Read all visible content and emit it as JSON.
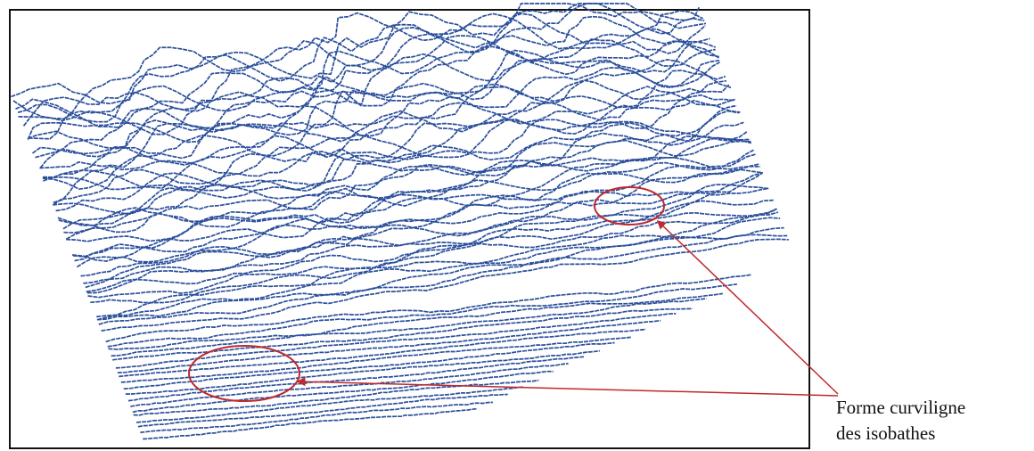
{
  "colors": {
    "isobath": "#2b4f9b",
    "annotation": "#c0282d",
    "frame": "#111111",
    "background": "#ffffff"
  },
  "annotation": {
    "line1": "Forme curviligne",
    "line2": "des isobathes"
  }
}
